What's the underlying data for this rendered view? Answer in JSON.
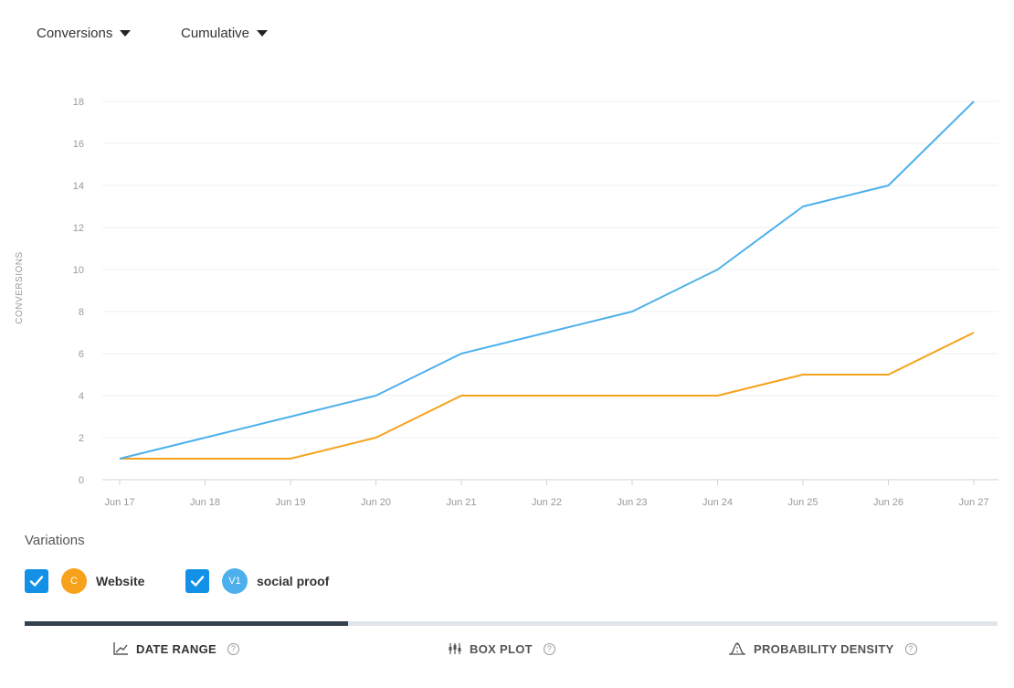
{
  "controls": {
    "metric_label": "Conversions",
    "mode_label": "Cumulative"
  },
  "chart_data": {
    "type": "line",
    "title": "",
    "xlabel": "",
    "ylabel": "CONVERSIONS",
    "categories": [
      "Jun 17",
      "Jun 18",
      "Jun 19",
      "Jun 20",
      "Jun 21",
      "Jun 22",
      "Jun 23",
      "Jun 24",
      "Jun 25",
      "Jun 26",
      "Jun 27"
    ],
    "ylim": [
      0,
      18
    ],
    "yticks": [
      0,
      2,
      4,
      6,
      8,
      10,
      12,
      14,
      16,
      18
    ],
    "grid": true,
    "series": [
      {
        "name": "Website",
        "color": "#f7a21b",
        "values": [
          1,
          1,
          1,
          2,
          4,
          4,
          4,
          4,
          5,
          5,
          7
        ]
      },
      {
        "name": "social proof",
        "color": "#4db0ec",
        "values": [
          1,
          2,
          3,
          4,
          6,
          7,
          8,
          10,
          13,
          14,
          18
        ]
      }
    ]
  },
  "variations": {
    "title": "Variations",
    "items": [
      {
        "badge": "C",
        "label": "Website",
        "color": "#f7a21b"
      },
      {
        "badge": "V1",
        "label": "social proof",
        "color": "#4db0ec"
      }
    ]
  },
  "tabs": [
    {
      "label": "DATE RANGE",
      "icon": "line-chart-icon",
      "help": "?"
    },
    {
      "label": "BOX PLOT",
      "icon": "box-plot-icon",
      "help": "?"
    },
    {
      "label": "PROBABILITY DENSITY",
      "icon": "density-icon",
      "help": "?"
    }
  ]
}
